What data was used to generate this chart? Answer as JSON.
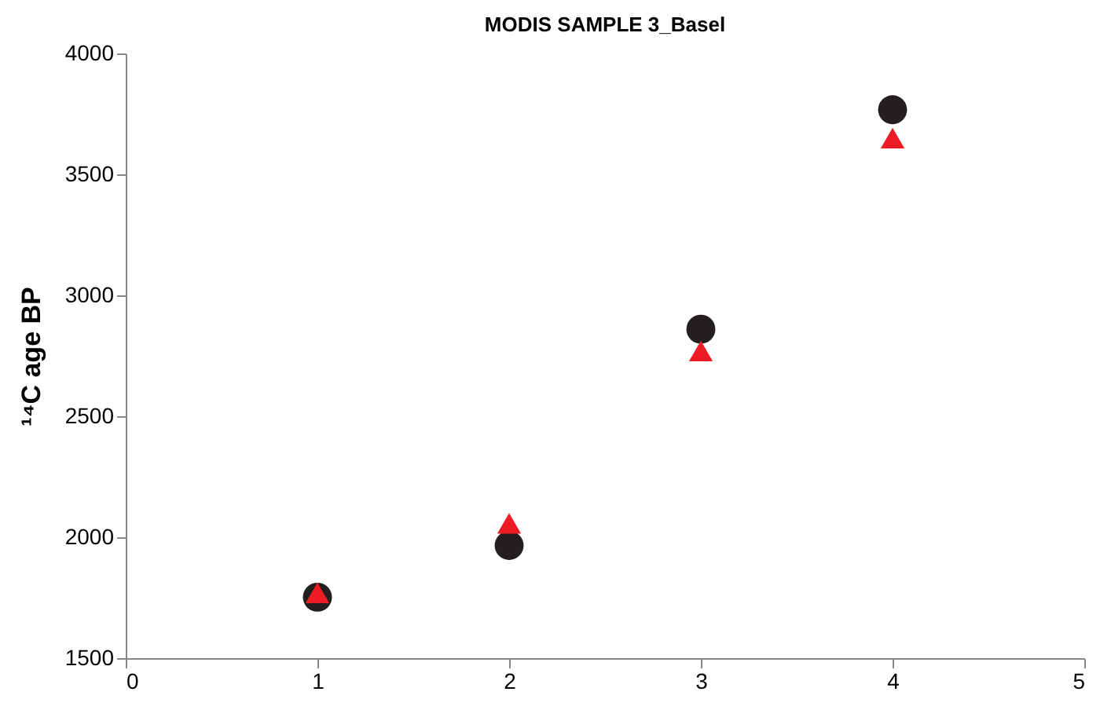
{
  "chart_data": {
    "type": "scatter",
    "title": "MODIS SAMPLE 3_Basel",
    "ylabel": "¹⁴C age  BP",
    "x": [
      1,
      2,
      3,
      4
    ],
    "series": [
      {
        "color": "#231f20",
        "marker": "circle",
        "values": [
          1752,
          1966,
          2860,
          3767
        ]
      },
      {
        "color": "#ed1c24",
        "marker": "triangle",
        "values": [
          1770,
          2057,
          2770,
          3650
        ]
      }
    ],
    "xlim": [
      0,
      5
    ],
    "xticks": [
      0,
      1,
      2,
      3,
      4,
      5
    ],
    "ylim": [
      1500,
      4000
    ],
    "yticks": [
      1500,
      2000,
      2500,
      3000,
      3500,
      4000
    ],
    "grid": false
  }
}
